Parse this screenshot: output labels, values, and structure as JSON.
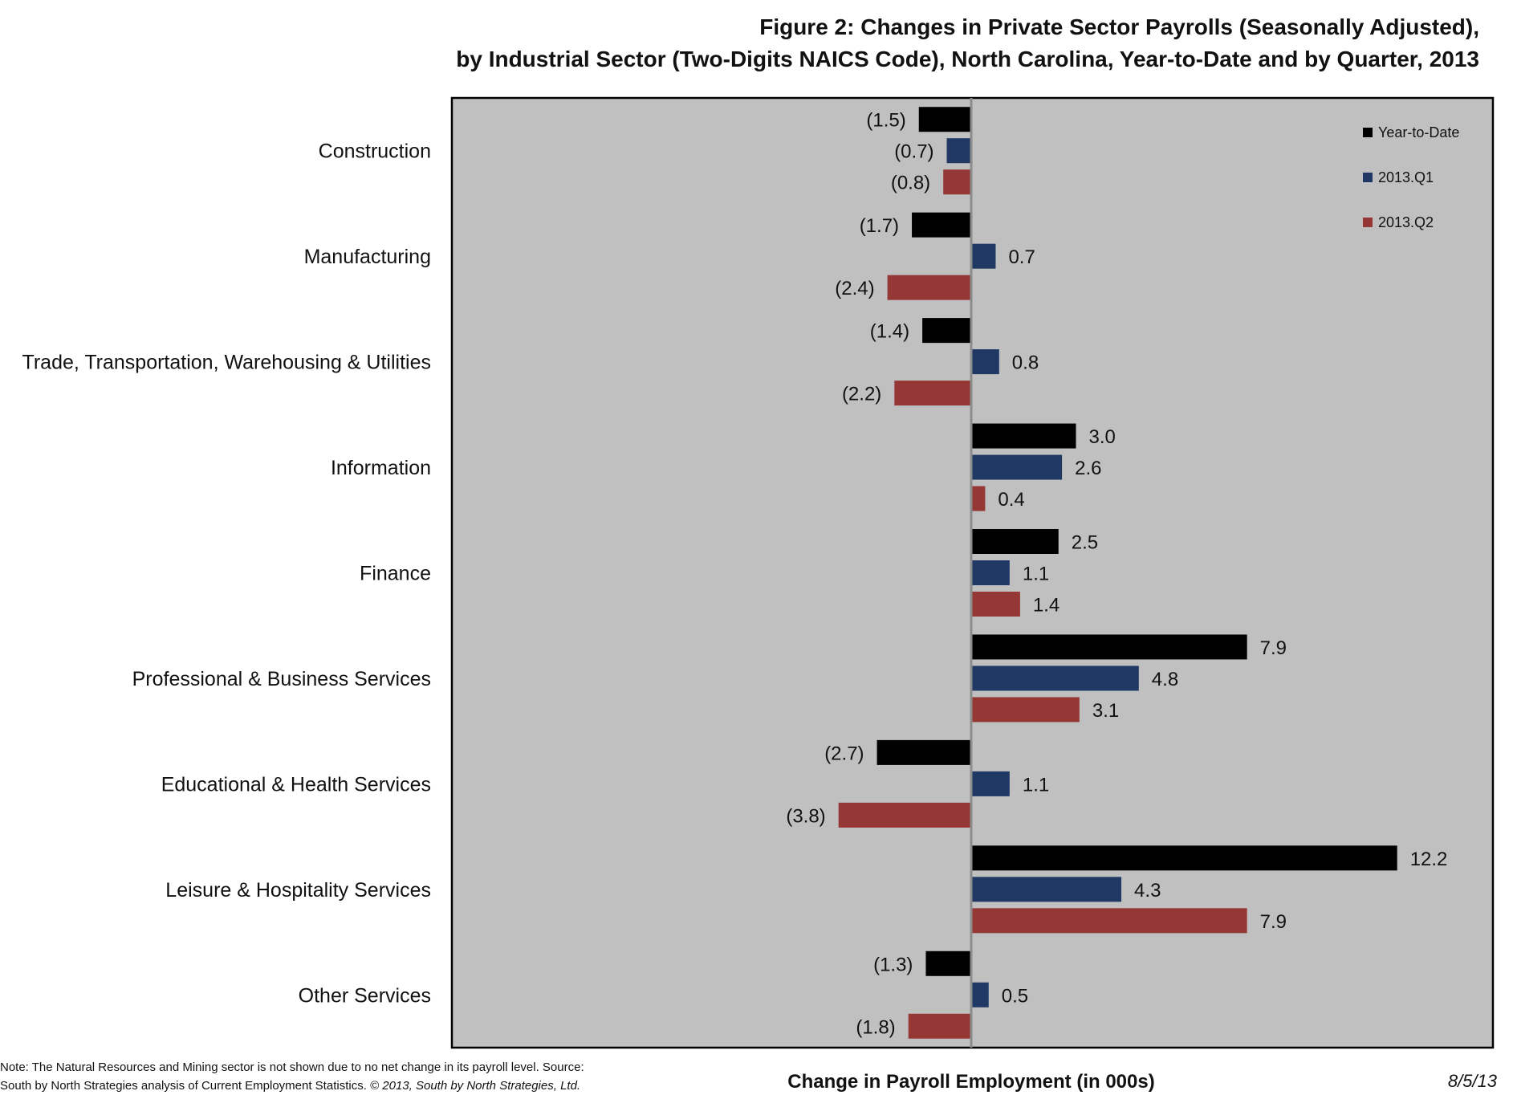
{
  "title_line1": "Figure 2: Changes in Private Sector Payrolls (Seasonally Adjusted),",
  "title_line2": "by Industrial Sector (Two-Digits NAICS Code), North Carolina, Year-to-Date and by Quarter, 2013",
  "footer": {
    "note": "Note: The Natural Resources and Mining sector is not shown due to no net change in its payroll level. Source:",
    "source_a": "South by North Strategies analysis of Current Employment Statistics.",
    "source_b": "© 2013, South by North Strategies, Ltd.",
    "date": "8/5/13"
  },
  "colors": {
    "plot_bg": "#c0c0c0",
    "zero_line": "#8c8c8c"
  },
  "chart_data": {
    "type": "bar",
    "orientation": "horizontal",
    "xlabel": "Change in Payroll Employment (in 000s)",
    "xlim": [
      -4.5,
      13.0
    ],
    "grid": false,
    "legend_position": "top-right",
    "categories": [
      "Construction",
      "Manufacturing",
      "Trade, Transportation, Warehousing & Utilities",
      "Information",
      "Finance",
      "Professional & Business Services",
      "Educational & Health Services",
      "Leisure & Hospitality Services",
      "Other Services"
    ],
    "series": [
      {
        "name": "Year-to-Date",
        "color": "#000000",
        "values": [
          -1.5,
          -1.7,
          -1.4,
          3.0,
          2.5,
          7.9,
          -2.7,
          12.2,
          -1.3
        ],
        "labels": [
          "(1.5)",
          "(1.7)",
          "(1.4)",
          "3.0",
          "2.5",
          "7.9",
          "(2.7)",
          "12.2",
          "(1.3)"
        ]
      },
      {
        "name": "2013.Q1",
        "color": "#1f3864",
        "values": [
          -0.7,
          0.7,
          0.8,
          2.6,
          1.1,
          4.8,
          1.1,
          4.3,
          0.5
        ],
        "labels": [
          "(0.7)",
          "0.7",
          "0.8",
          "2.6",
          "1.1",
          "4.8",
          "1.1",
          "4.3",
          "0.5"
        ]
      },
      {
        "name": "2013.Q2",
        "color": "#953735",
        "values": [
          -0.8,
          -2.4,
          -2.2,
          0.4,
          1.4,
          3.1,
          -3.8,
          7.9,
          -1.8
        ],
        "labels": [
          "(0.8)",
          "(2.4)",
          "(2.2)",
          "0.4",
          "1.4",
          "3.1",
          "(3.8)",
          "7.9",
          "(1.8)"
        ]
      }
    ]
  }
}
